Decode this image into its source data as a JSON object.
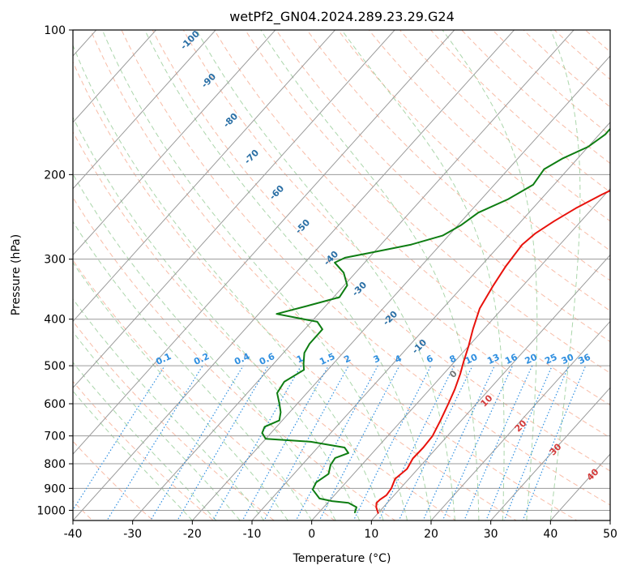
{
  "chart_data": {
    "type": "line",
    "title": "wetPf2_GN04.2024.289.23.29.G24",
    "xlabel": "Temperature (°C)",
    "ylabel": "Pressure (hPa)",
    "xlim": [
      -40,
      50
    ],
    "ylim": [
      1050,
      100
    ],
    "y_scale": "log",
    "grid": true,
    "x_ticks": [
      -40,
      -30,
      -20,
      -10,
      0,
      10,
      20,
      30,
      40,
      50
    ],
    "y_ticks": [
      100,
      200,
      300,
      400,
      500,
      600,
      700,
      800,
      900,
      1000
    ],
    "series": [
      {
        "role": "temperature",
        "color": "#e8120c",
        "points": [
          [
            10,
            1013
          ],
          [
            8.8,
            985
          ],
          [
            8.2,
            965
          ],
          [
            8.3,
            950
          ],
          [
            8.7,
            930
          ],
          [
            8.5,
            900
          ],
          [
            7.7,
            860
          ],
          [
            8.2,
            820
          ],
          [
            7.6,
            780
          ],
          [
            7.7,
            740
          ],
          [
            7.5,
            700
          ],
          [
            6.5,
            650
          ],
          [
            5.3,
            600
          ],
          [
            4.2,
            560
          ],
          [
            2.8,
            520
          ],
          [
            1.5,
            490
          ],
          [
            0.0,
            455
          ],
          [
            -1.8,
            420
          ],
          [
            -3.8,
            380
          ],
          [
            -5.0,
            340
          ],
          [
            -5.8,
            310
          ],
          [
            -6.3,
            280
          ],
          [
            -5.8,
            265
          ],
          [
            -4.5,
            250
          ],
          [
            -2.8,
            235
          ],
          [
            -0.5,
            220
          ],
          [
            2.5,
            205
          ],
          [
            5.0,
            190
          ],
          [
            6.6,
            170
          ],
          [
            8.6,
            150
          ],
          [
            11.0,
            132
          ],
          [
            13.2,
            120
          ],
          [
            14.5,
            110
          ],
          [
            15.5,
            104
          ],
          [
            16.0,
            100
          ]
        ]
      },
      {
        "role": "dewpoint",
        "color": "#0e7d12",
        "points": [
          [
            6,
            1010
          ],
          [
            5.5,
            985
          ],
          [
            3.5,
            965
          ],
          [
            0.5,
            957
          ],
          [
            -2.0,
            945
          ],
          [
            -4.5,
            905
          ],
          [
            -5.0,
            875
          ],
          [
            -4.2,
            840
          ],
          [
            -5.2,
            805
          ],
          [
            -5.5,
            778
          ],
          [
            -4.0,
            760
          ],
          [
            -5.5,
            740
          ],
          [
            -12.0,
            720
          ],
          [
            -20.0,
            710
          ],
          [
            -21.5,
            690
          ],
          [
            -22.0,
            670
          ],
          [
            -20.5,
            650
          ],
          [
            -21.5,
            625
          ],
          [
            -23.0,
            600
          ],
          [
            -25.0,
            570
          ],
          [
            -25.5,
            540
          ],
          [
            -24.0,
            510
          ],
          [
            -25.0,
            495
          ],
          [
            -26.5,
            470
          ],
          [
            -27.0,
            450
          ],
          [
            -27.0,
            420
          ],
          [
            -29.0,
            405
          ],
          [
            -37.0,
            390
          ],
          [
            -33.0,
            375
          ],
          [
            -29.0,
            360
          ],
          [
            -29.5,
            340
          ],
          [
            -32.0,
            320
          ],
          [
            -35.0,
            305
          ],
          [
            -34.0,
            298
          ],
          [
            -30.0,
            290
          ],
          [
            -25.0,
            280
          ],
          [
            -21.0,
            268
          ],
          [
            -19.5,
            255
          ],
          [
            -18.5,
            240
          ],
          [
            -15.5,
            225
          ],
          [
            -13.5,
            210
          ],
          [
            -14.0,
            195
          ],
          [
            -12.5,
            185
          ],
          [
            -10.0,
            175
          ],
          [
            -9.0,
            165
          ],
          [
            -9.0,
            150
          ],
          [
            -8.0,
            140
          ],
          [
            -6.0,
            130
          ],
          [
            -4.0,
            118
          ],
          [
            -2.0,
            110
          ],
          [
            0.5,
            103
          ],
          [
            1.5,
            100
          ]
        ]
      }
    ],
    "dry_adiabat_labels": [
      "-100",
      "-90",
      "-80",
      "-70",
      "-60",
      "-50",
      "-40",
      "-30",
      "-20",
      "-10",
      "0",
      "10",
      "20",
      "30",
      "40"
    ],
    "mixing_ratio_labels": [
      "0.1",
      "0.2",
      "0.4",
      "0.6",
      "1",
      "1.5",
      "2",
      "3",
      "4",
      "6",
      "8",
      "10",
      "13",
      "16",
      "20",
      "25",
      "30",
      "36"
    ],
    "colors": {
      "isotherm": "#9a9a9a",
      "isobar": "#9a9a9a",
      "dry_adiabat": "#f5a58a",
      "moist_adiabat": "#96cc96",
      "mixing_ratio": "#2f8fe0",
      "label_negative": "#2a6fa5",
      "label_positive": "#d43b3b",
      "label_mixing": "#2f8fe0",
      "label_zero": "#777777"
    }
  }
}
